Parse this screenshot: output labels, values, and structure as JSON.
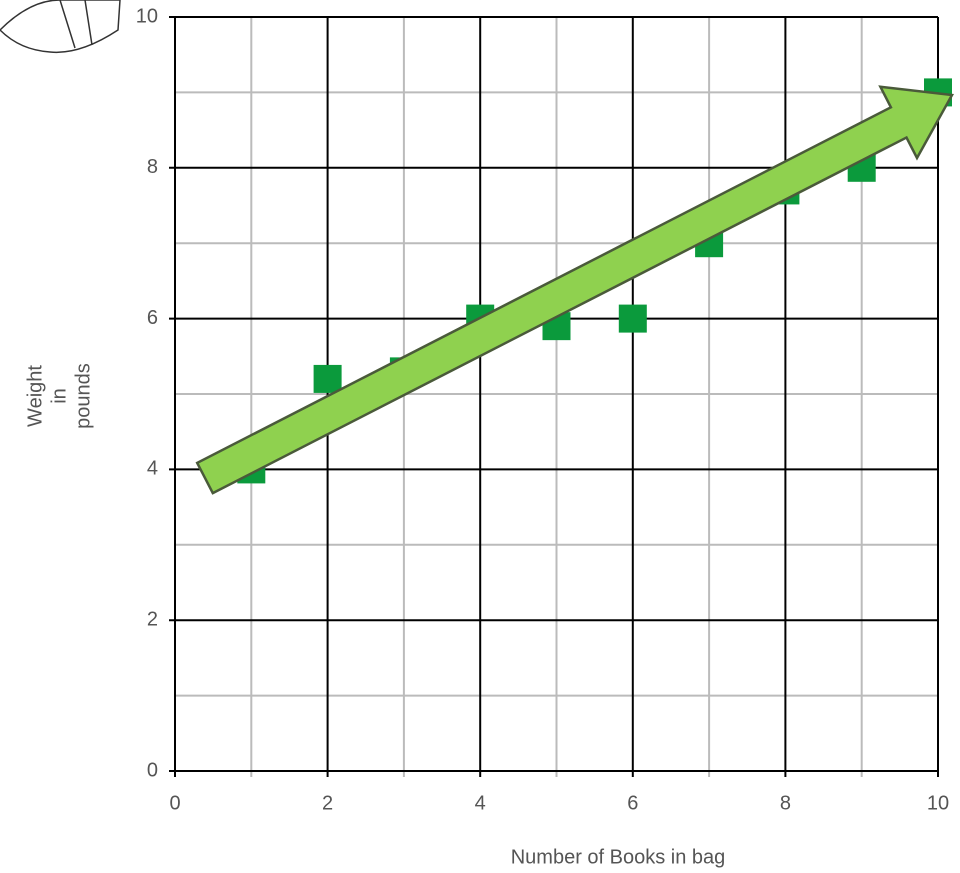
{
  "chart_data": {
    "type": "scatter",
    "xlabel": "Number of Books in bag",
    "ylabel": [
      "Weight",
      "in",
      "pounds"
    ],
    "x": [
      1,
      2,
      3,
      4,
      5,
      6,
      7,
      8,
      9,
      10
    ],
    "series": [
      {
        "color": "#0b9a3c",
        "values": [
          4,
          5.2,
          5.3,
          6,
          5.9,
          6,
          7,
          7.7,
          8,
          9
        ]
      }
    ],
    "xlim": [
      0,
      10
    ],
    "xticks": [
      0,
      2,
      4,
      6,
      8,
      10
    ],
    "ylim": [
      0,
      10
    ],
    "yticks": [
      0,
      2,
      4,
      6,
      8,
      10
    ],
    "grid": true
  }
}
